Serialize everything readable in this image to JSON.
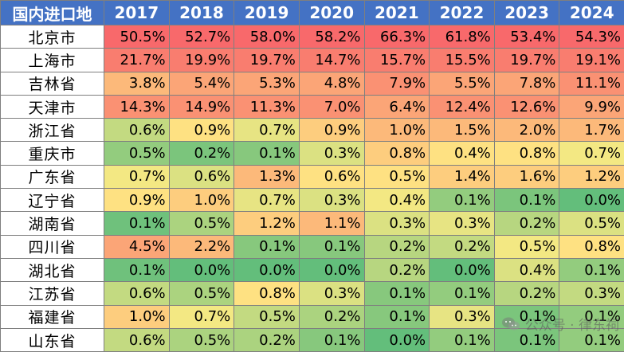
{
  "chart_data": {
    "type": "heatmap",
    "corner_label": "国内进口地",
    "columns": [
      "2017",
      "2018",
      "2019",
      "2020",
      "2021",
      "2022",
      "2023",
      "2024"
    ],
    "rows": [
      {
        "label": "北京市",
        "values": [
          50.5,
          52.7,
          58.0,
          58.2,
          66.3,
          61.8,
          53.4,
          54.3
        ]
      },
      {
        "label": "上海市",
        "values": [
          21.7,
          19.9,
          19.7,
          14.7,
          15.7,
          15.5,
          19.7,
          19.1
        ]
      },
      {
        "label": "吉林省",
        "values": [
          3.8,
          5.4,
          5.3,
          4.8,
          7.9,
          5.5,
          7.8,
          11.1
        ]
      },
      {
        "label": "天津市",
        "values": [
          14.3,
          14.9,
          11.3,
          7.0,
          6.4,
          12.4,
          12.6,
          9.9
        ]
      },
      {
        "label": "浙江省",
        "values": [
          0.6,
          0.9,
          0.7,
          0.9,
          1.0,
          1.5,
          2.0,
          1.7
        ]
      },
      {
        "label": "重庆市",
        "values": [
          0.5,
          0.2,
          0.1,
          0.3,
          0.8,
          0.4,
          0.8,
          0.7
        ]
      },
      {
        "label": "广东省",
        "values": [
          0.7,
          0.6,
          1.3,
          0.6,
          0.5,
          1.4,
          1.6,
          1.2
        ]
      },
      {
        "label": "辽宁省",
        "values": [
          0.9,
          1.0,
          0.7,
          0.3,
          0.4,
          0.1,
          0.1,
          0.0
        ]
      },
      {
        "label": "湖南省",
        "values": [
          0.1,
          0.5,
          1.2,
          1.1,
          0.3,
          0.3,
          0.2,
          0.5
        ]
      },
      {
        "label": "四川省",
        "values": [
          4.5,
          2.2,
          0.1,
          0.1,
          0.2,
          0.2,
          0.5,
          0.8
        ]
      },
      {
        "label": "湖北省",
        "values": [
          0.1,
          0.0,
          0.0,
          0.0,
          0.2,
          0.0,
          0.4,
          0.1
        ]
      },
      {
        "label": "江苏省",
        "values": [
          0.6,
          0.5,
          0.8,
          0.3,
          0.1,
          0.1,
          0.2,
          0.3
        ]
      },
      {
        "label": "福建省",
        "values": [
          1.0,
          0.7,
          0.5,
          0.2,
          0.1,
          0.3,
          0.1,
          0.1
        ]
      },
      {
        "label": "山东省",
        "values": [
          0.6,
          0.5,
          0.2,
          0.1,
          0.0,
          0.1,
          0.1,
          0.1
        ]
      }
    ],
    "value_suffix": "%",
    "color_scale": {
      "low": "#63be7b",
      "mid": "#ffeb84",
      "high": "#f8696b",
      "scope": "per-column"
    },
    "header_bg": "#4472c4",
    "header_fg": "#ffffff",
    "border": "#7f7f7f"
  },
  "watermark": {
    "text": "公众号 · 律东祠",
    "icon": "wechat-icon"
  }
}
